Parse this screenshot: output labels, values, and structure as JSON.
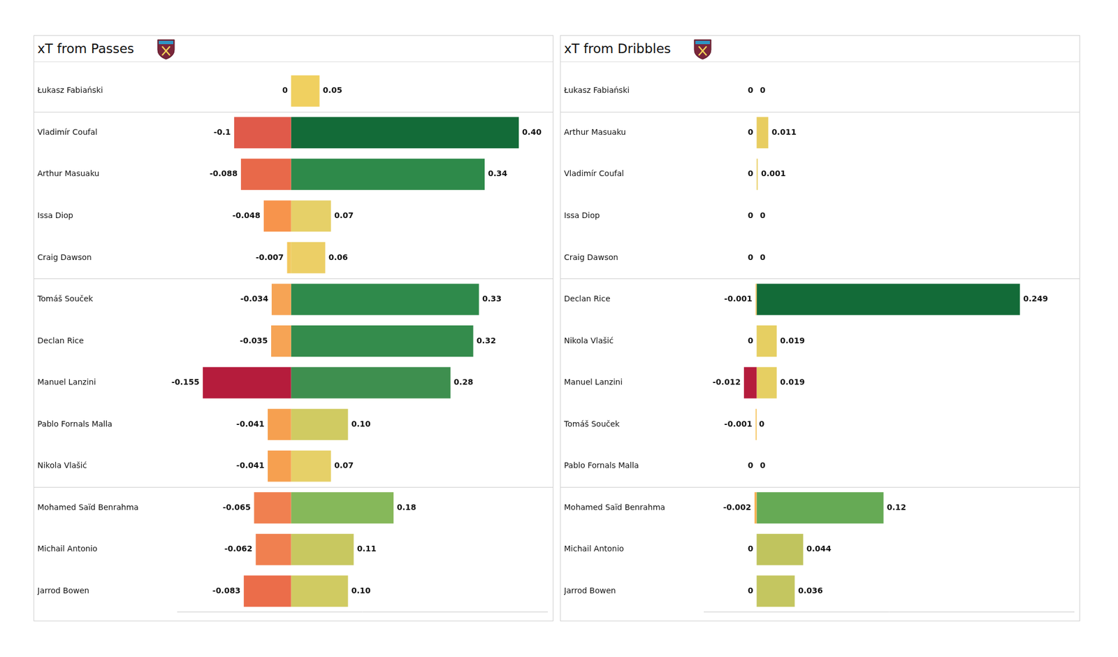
{
  "chart_data": [
    {
      "type": "bar",
      "title": "xT from Passes",
      "orientation": "horizontal",
      "stacked": true,
      "data_labels": true,
      "tick_labels": "y",
      "grid": false,
      "categories": [
        "Łukasz Fabiański",
        "Vladimír Coufal",
        "Arthur Masuaku",
        "Issa Diop",
        "Craig Dawson",
        "Tomáš Souček",
        "Declan Rice",
        "Manuel Lanzini",
        "Pablo Fornals Malla",
        "Nikola Vlašić",
        "Mohamed Saïd Benrahma",
        "Michail Antonio",
        "Jarrod Bowen"
      ],
      "xlim": [
        -0.2,
        0.45
      ],
      "series": [
        {
          "values": [
            0,
            -0.1,
            -0.088,
            -0.048,
            -0.007,
            -0.034,
            -0.035,
            -0.155,
            -0.041,
            -0.041,
            -0.065,
            -0.062,
            -0.083
          ],
          "value_labels": [
            "0",
            "-0.1",
            "-0.088",
            "-0.048",
            "-0.007",
            "-0.034",
            "-0.035",
            "-0.155",
            "-0.041",
            "-0.041",
            "-0.065",
            "-0.062",
            "-0.083"
          ],
          "colors": [
            "#f0d060",
            "#e05a4a",
            "#e8694a",
            "#f7944c",
            "#f2c85e",
            "#f6a455",
            "#f6a455",
            "#b51c3c",
            "#f6a050",
            "#f6a050",
            "#f08050",
            "#f08050",
            "#eb6d4a"
          ]
        },
        {
          "values": [
            0.05,
            0.4,
            0.34,
            0.07,
            0.06,
            0.33,
            0.32,
            0.28,
            0.1,
            0.07,
            0.18,
            0.11,
            0.1
          ],
          "value_labels": [
            "0.05",
            "0.40",
            "0.34",
            "0.07",
            "0.06",
            "0.33",
            "0.32",
            "0.28",
            "0.10",
            "0.07",
            "0.18",
            "0.11",
            "0.10"
          ],
          "colors": [
            "#f0d060",
            "#136b38",
            "#2e8a4a",
            "#e6d068",
            "#eccf66",
            "#2f8a4b",
            "#348c4c",
            "#3e8f4f",
            "#d0cb62",
            "#e6d068",
            "#86b85a",
            "#c8c860",
            "#d0cb62"
          ]
        }
      ]
    },
    {
      "type": "bar",
      "title": "xT from Dribbles",
      "orientation": "horizontal",
      "stacked": true,
      "data_labels": true,
      "tick_labels": "y",
      "grid": false,
      "categories": [
        "Łukasz Fabiański",
        "Arthur Masuaku",
        "Vladimír Coufal",
        "Issa Diop",
        "Craig Dawson",
        "Declan Rice",
        "Nikola Vlašić",
        "Manuel Lanzini",
        "Tomáš Souček",
        "Pablo Fornals Malla",
        "Mohamed Saïd Benrahma",
        "Michail Antonio",
        "Jarrod Bowen"
      ],
      "xlim": [
        -0.05,
        0.3
      ],
      "series": [
        {
          "values": [
            0,
            0,
            0,
            0,
            0,
            -0.001,
            0,
            -0.012,
            -0.001,
            0,
            -0.002,
            0,
            0
          ],
          "value_labels": [
            "0",
            "0",
            "0",
            "0",
            "0",
            "-0.001",
            "0",
            "-0.012",
            "-0.001",
            "0",
            "-0.002",
            "0",
            "0"
          ],
          "colors": [
            "#f2c85e",
            "#f2c85e",
            "#f2c85e",
            "#f2c85e",
            "#f2c85e",
            "#f5c25c",
            "#f2c85e",
            "#b51c3c",
            "#f5c25c",
            "#f2c85e",
            "#f5b050",
            "#f2c85e",
            "#f2c85e"
          ]
        },
        {
          "values": [
            0,
            0.011,
            0.001,
            0,
            0,
            0.249,
            0.019,
            0.019,
            0,
            0,
            0.12,
            0.044,
            0.036
          ],
          "value_labels": [
            "0",
            "0.011",
            "0.001",
            "0",
            "0",
            "0.249",
            "0.019",
            "0.019",
            "0",
            "0",
            "0.12",
            "0.044",
            "0.036"
          ],
          "colors": [
            "#eccf60",
            "#e8cd60",
            "#e8cd60",
            "#eccf60",
            "#eccf60",
            "#136b38",
            "#e6cf62",
            "#e6cf62",
            "#eccf60",
            "#eccf60",
            "#66aa55",
            "#c0c45e",
            "#c4c660"
          ]
        }
      ]
    }
  ]
}
